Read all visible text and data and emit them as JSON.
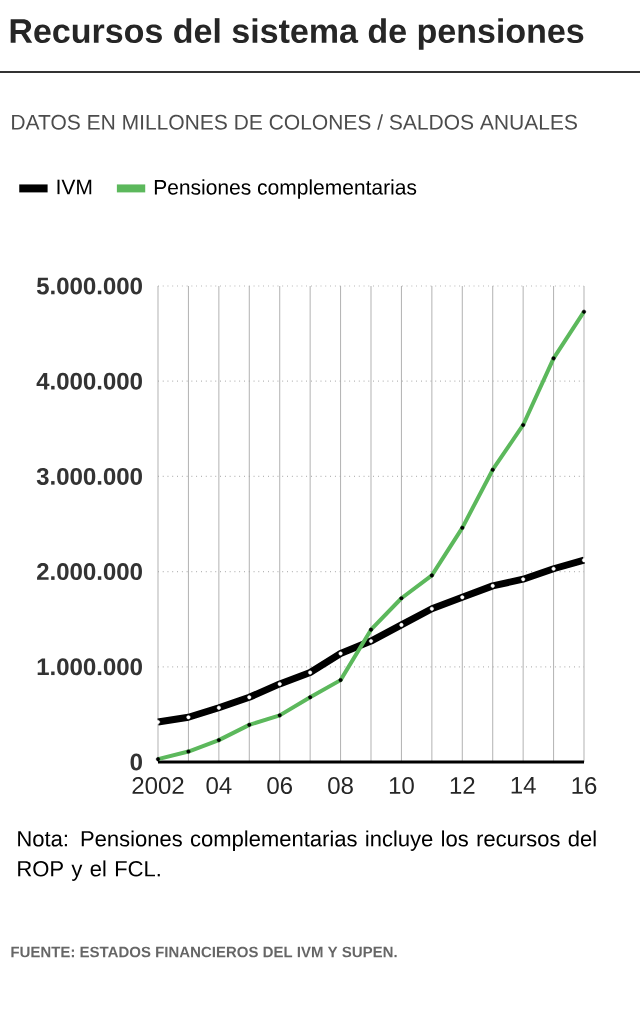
{
  "chart_data": {
    "type": "line",
    "title": "Recursos del sistema de pensiones",
    "subtitle": "DATOS EN MILLONES DE COLONES / SALDOS ANUALES",
    "x": [
      2002,
      2003,
      2004,
      2005,
      2006,
      2007,
      2008,
      2009,
      2010,
      2011,
      2012,
      2013,
      2014,
      2015,
      2016
    ],
    "series": [
      {
        "name": "IVM",
        "color": "#000000",
        "values": [
          420000,
          470000,
          570000,
          680000,
          820000,
          940000,
          1140000,
          1270000,
          1440000,
          1610000,
          1730000,
          1850000,
          1920000,
          2030000,
          2120000
        ]
      },
      {
        "name": "Pensiones complementarias",
        "color": "#5cb85c",
        "values": [
          30000,
          110000,
          230000,
          390000,
          490000,
          680000,
          860000,
          1390000,
          1720000,
          1960000,
          2460000,
          3070000,
          3540000,
          4240000,
          4730000
        ]
      }
    ],
    "xlim": [
      2002,
      2016
    ],
    "xticks": [
      {
        "value": 2002,
        "label": "2002"
      },
      {
        "value": 2003,
        "label": null
      },
      {
        "value": 2004,
        "label": "04"
      },
      {
        "value": 2005,
        "label": null
      },
      {
        "value": 2006,
        "label": "06"
      },
      {
        "value": 2007,
        "label": null
      },
      {
        "value": 2008,
        "label": "08"
      },
      {
        "value": 2009,
        "label": null
      },
      {
        "value": 2010,
        "label": "10"
      },
      {
        "value": 2011,
        "label": null
      },
      {
        "value": 2012,
        "label": "12"
      },
      {
        "value": 2013,
        "label": null
      },
      {
        "value": 2014,
        "label": "14"
      },
      {
        "value": 2015,
        "label": null
      },
      {
        "value": 2016,
        "label": "16"
      }
    ],
    "ylim": [
      0,
      5000000
    ],
    "yticks": [
      {
        "value": 0,
        "label": "0"
      },
      {
        "value": 1000000,
        "label": "1.000.000"
      },
      {
        "value": 2000000,
        "label": "2.000.000"
      },
      {
        "value": 3000000,
        "label": "3.000.000"
      },
      {
        "value": 4000000,
        "label": "4.000.000"
      },
      {
        "value": 5000000,
        "label": "5.000.000"
      }
    ],
    "grid": true,
    "legend": "top",
    "marker": "circle",
    "line_style": "solid",
    "annotations": [
      "Nota: Pensiones complementarias incluye los recursos del ROP y el FCL.",
      "FUENTE: ESTADOS FINANCIEROS DEL IVM Y SUPEN."
    ]
  }
}
